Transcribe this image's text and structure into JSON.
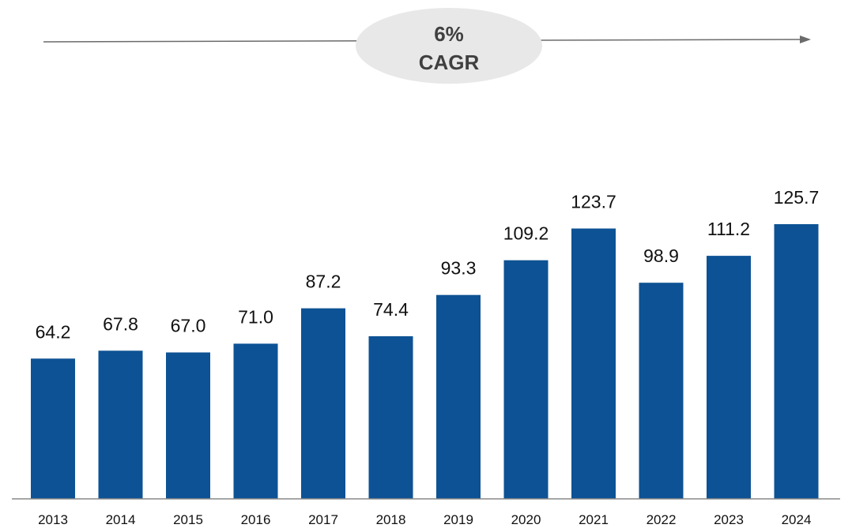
{
  "chart_data": {
    "type": "bar",
    "categories": [
      "2013",
      "2014",
      "2015",
      "2016",
      "2017",
      "2018",
      "2019",
      "2020",
      "2021",
      "2022",
      "2023",
      "2024"
    ],
    "values": [
      64.2,
      67.8,
      67.0,
      71.0,
      87.2,
      74.4,
      93.3,
      109.2,
      123.7,
      98.9,
      111.2,
      125.7
    ],
    "value_labels": [
      "64.2",
      "67.8",
      "67.0",
      "71.0",
      "87.2",
      "74.4",
      "93.3",
      "109.2",
      "123.7",
      "98.9",
      "111.2",
      "125.7"
    ],
    "title": "",
    "xlabel": "",
    "ylabel": "",
    "ylim": [
      0,
      135
    ],
    "grid": false,
    "legend": "none",
    "annotation": {
      "line1": "6%",
      "line2": "CAGR"
    },
    "colors": {
      "bar": "#0d5294",
      "axis": "#888888",
      "arrow": "#6b6b6b",
      "ellipse": "#e8e8e8",
      "annotation_text": "#404040",
      "label_text": "#111111"
    }
  }
}
